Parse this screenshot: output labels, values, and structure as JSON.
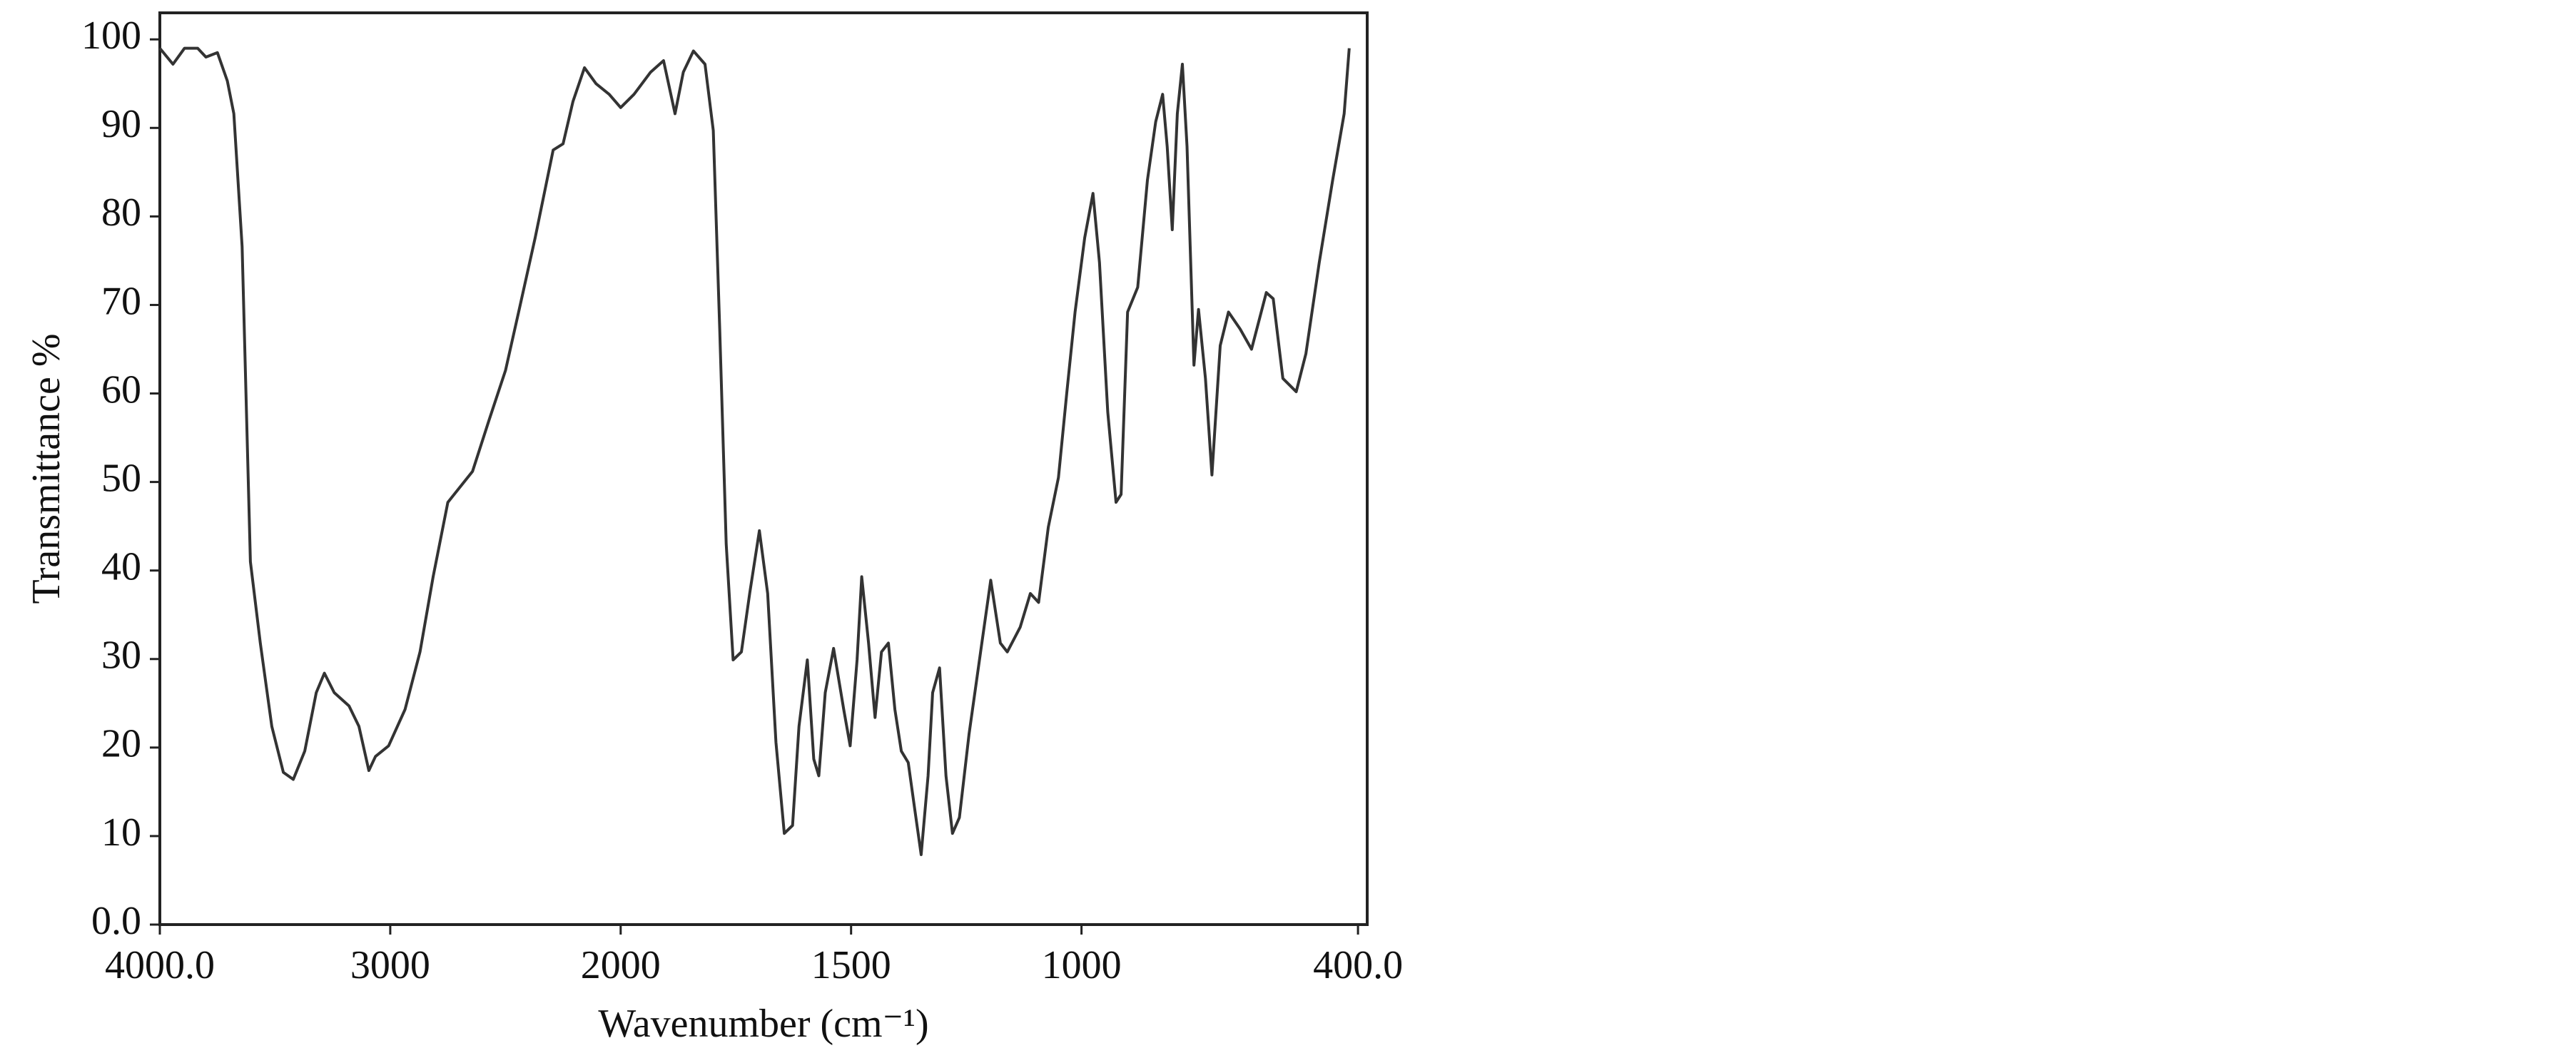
{
  "chart_data": {
    "type": "line",
    "xlabel": "Wavenumber (cm⁻¹)",
    "ylabel": "Transmittance %",
    "xlim": [
      4000,
      380
    ],
    "xbreak": 2000,
    "xticks": [
      {
        "value": 4000,
        "label": "4000.0"
      },
      3000,
      2000,
      1500,
      1000,
      {
        "value": 400,
        "label": "400.0"
      }
    ],
    "ylim": [
      0,
      103
    ],
    "yticks": [
      {
        "value": 0,
        "label": "0.0"
      },
      10,
      20,
      30,
      40,
      50,
      60,
      70,
      80,
      90,
      100
    ],
    "color": "#333333",
    "x": [
      4000,
      3943,
      3893,
      3836,
      3800,
      3750,
      3707,
      3679,
      3643,
      3607,
      3564,
      3514,
      3464,
      3421,
      3371,
      3321,
      3286,
      3243,
      3179,
      3136,
      3093,
      3064,
      3007,
      2936,
      2871,
      2814,
      2750,
      2643,
      2571,
      2500,
      2443,
      2371,
      2293,
      2250,
      2207,
      2157,
      2107,
      2050,
      2000,
      1971,
      1935,
      1907,
      1882,
      1864,
      1842,
      1817,
      1799,
      1785,
      1771,
      1756,
      1738,
      1720,
      1699,
      1681,
      1663,
      1645,
      1627,
      1613,
      1595,
      1581,
      1570,
      1556,
      1538,
      1516,
      1502,
      1487,
      1477,
      1462,
      1448,
      1434,
      1419,
      1405,
      1391,
      1376,
      1362,
      1348,
      1333,
      1323,
      1308,
      1294,
      1280,
      1265,
      1244,
      1219,
      1197,
      1176,
      1161,
      1133,
      1111,
      1093,
      1072,
      1050,
      1032,
      1014,
      993,
      975,
      961,
      943,
      925,
      914,
      900,
      878,
      857,
      839,
      824,
      814,
      803,
      792,
      781,
      771,
      756,
      746,
      731,
      717,
      699,
      681,
      656,
      631,
      599,
      584,
      563,
      534,
      513,
      484,
      455,
      430,
      419
    ],
    "values": [
      99,
      97.2,
      99,
      99,
      98,
      98.5,
      95.3,
      91.6,
      76.6,
      41,
      31.8,
      22.4,
      17.2,
      16.4,
      19.6,
      26.2,
      28.4,
      26.2,
      24.7,
      22.4,
      17.4,
      19,
      20.2,
      24.3,
      30.8,
      39.3,
      47.7,
      51.2,
      57,
      62.6,
      69.2,
      77.6,
      87.5,
      88.2,
      93,
      96.8,
      95,
      93.8,
      92.3,
      93.8,
      96.3,
      97.6,
      91.6,
      96.3,
      98.7,
      97.2,
      89.7,
      67.3,
      43,
      29.9,
      30.8,
      37.4,
      44.5,
      37.4,
      20.6,
      10.3,
      11.2,
      22.4,
      29.9,
      18.7,
      16.8,
      26.2,
      31.2,
      24.3,
      20.2,
      29.9,
      39.3,
      31.8,
      23.4,
      30.8,
      31.8,
      24.3,
      19.6,
      18.3,
      13.1,
      7.9,
      16.8,
      26.2,
      29,
      16.8,
      10.3,
      12.1,
      21.5,
      30.8,
      38.9,
      31.8,
      30.8,
      33.6,
      37.4,
      36.4,
      44.9,
      50.5,
      60,
      69.2,
      77.6,
      82.6,
      74.8,
      57.9,
      47.7,
      48.6,
      69.2,
      72,
      84.1,
      90.7,
      93.8,
      87.9,
      78.5,
      91.6,
      97.2,
      87.9,
      63.2,
      69.5,
      61.7,
      50.8,
      65.4,
      69.2,
      67.3,
      65,
      71.4,
      70.7,
      61.7,
      60.2,
      64.5,
      74.8,
      84.1,
      91.6,
      99
    ]
  }
}
